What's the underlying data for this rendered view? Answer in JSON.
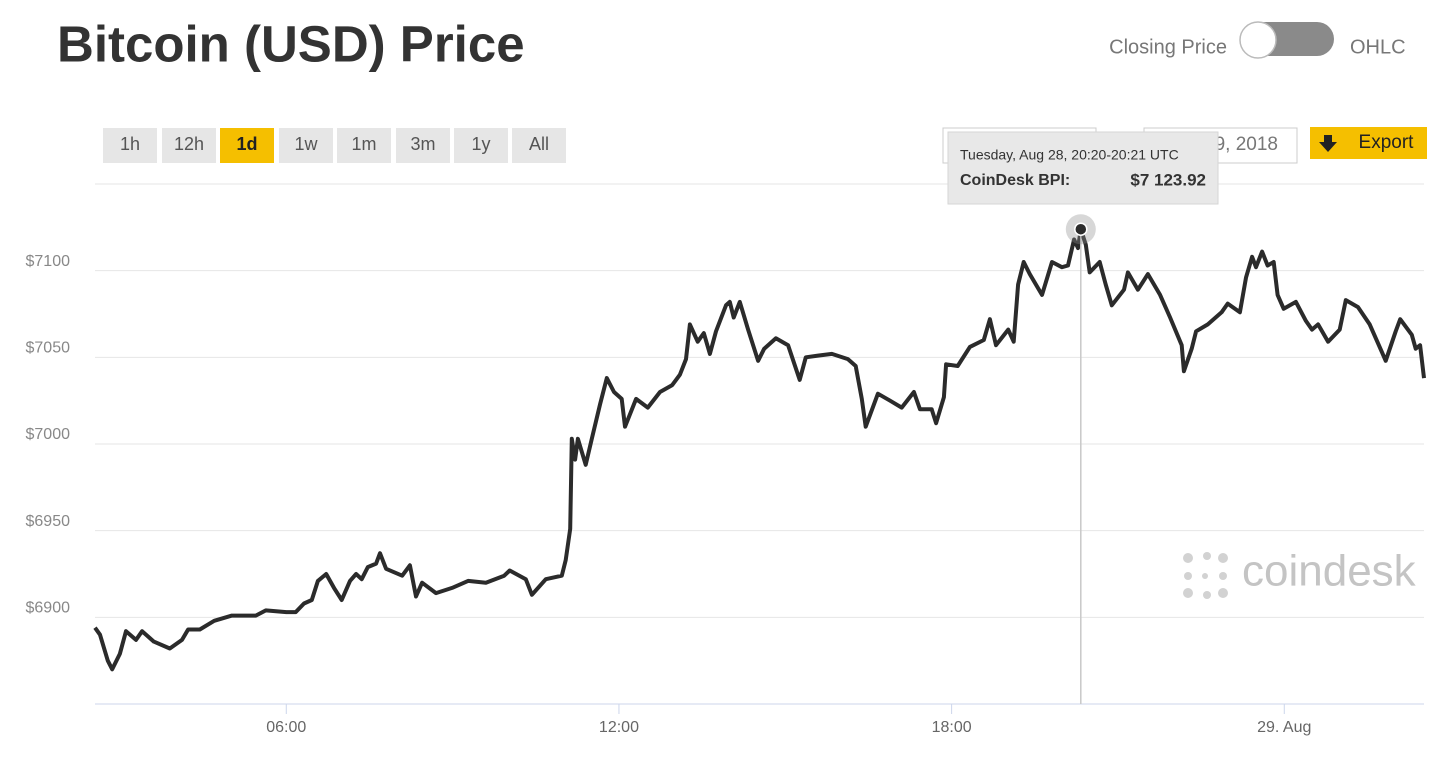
{
  "header": {
    "title": "Bitcoin (USD) Price",
    "toggle": {
      "left": "Closing Price",
      "right": "OHLC"
    }
  },
  "ranges": [
    "1h",
    "12h",
    "1d",
    "1w",
    "1m",
    "3m",
    "1y",
    "All"
  ],
  "selected": 2,
  "date_to": "9, 2018",
  "export": "Export",
  "chart_data": {
    "type": "line",
    "watermark": "coindesk",
    "x": [
      2.55,
      2.64,
      2.78,
      2.86,
      3.0,
      3.11,
      3.29,
      3.4,
      3.61,
      3.9,
      4.12,
      4.23,
      4.44,
      4.7,
      5.02,
      5.45,
      5.63,
      6.0,
      6.17,
      6.32,
      6.46,
      6.57,
      6.72,
      6.86,
      7.0,
      7.15,
      7.26,
      7.36,
      7.47,
      7.62,
      7.69,
      7.8,
      8.09,
      8.23,
      8.34,
      8.45,
      8.7,
      8.99,
      9.28,
      9.6,
      9.93,
      10.03,
      10.32,
      10.43,
      10.68,
      10.97,
      11.04,
      11.12,
      11.15,
      11.21,
      11.26,
      11.4,
      11.51,
      11.66,
      11.78,
      11.91,
      12.05,
      12.11,
      12.31,
      12.52,
      12.74,
      12.96,
      13.1,
      13.21,
      13.28,
      13.42,
      13.53,
      13.64,
      13.75,
      13.93,
      14.0,
      14.07,
      14.18,
      14.33,
      14.51,
      14.62,
      14.83,
      15.05,
      15.26,
      15.37,
      15.59,
      15.84,
      16.13,
      16.27,
      16.38,
      16.45,
      16.67,
      16.89,
      17.1,
      17.32,
      17.43,
      17.64,
      17.72,
      17.86,
      17.9,
      18.11,
      18.33,
      18.58,
      18.69,
      18.8,
      19.02,
      19.12,
      19.2,
      19.3,
      19.41,
      19.63,
      19.81,
      19.99,
      20.1,
      20.21,
      20.28,
      20.33,
      20.42,
      20.49,
      20.67,
      20.78,
      20.89,
      21.11,
      21.18,
      21.36,
      21.54,
      21.76,
      21.94,
      22.15,
      22.19,
      22.33,
      22.41,
      22.62,
      22.87,
      22.98,
      23.2,
      23.31,
      23.42,
      23.49,
      23.6,
      23.7,
      23.81,
      23.88,
      23.99,
      24.21,
      24.39,
      24.5,
      24.61,
      24.79,
      25.0,
      25.11,
      25.33,
      25.54,
      25.76,
      25.83,
      26.01,
      26.09,
      26.3,
      26.37,
      26.45,
      26.52
    ],
    "series": [
      {
        "color": "#2b2b2b",
        "values": [
          6894,
          6890,
          6875,
          6870,
          6879,
          6892,
          6887,
          6892,
          6886,
          6882,
          6887,
          6893,
          6893,
          6898,
          6901,
          6901,
          6904,
          6903,
          6903,
          6908,
          6910,
          6921,
          6925,
          6917,
          6910,
          6921,
          6925,
          6922,
          6929,
          6931,
          6937,
          6928,
          6924,
          6930,
          6912,
          6920,
          6914,
          6917,
          6921,
          6920,
          6924,
          6927,
          6922,
          6913,
          6922,
          6924,
          6933,
          6951,
          7003,
          6991,
          7003,
          6988,
          7003,
          7023,
          7038,
          7030,
          7026,
          7010,
          7026,
          7021,
          7030,
          7034,
          7040,
          7049,
          7069,
          7059,
          7064,
          7052,
          7065,
          7080,
          7082,
          7073,
          7082,
          7066,
          7048,
          7055,
          7061,
          7057,
          7037,
          7050,
          7051,
          7052,
          7049,
          7045,
          7026,
          7010,
          7029,
          7025,
          7021,
          7030,
          7020,
          7020,
          7012,
          7027,
          7046,
          7045,
          7056,
          7060,
          7072,
          7057,
          7066,
          7059,
          7092,
          7105,
          7098,
          7086,
          7105,
          7102,
          7103,
          7118,
          7113,
          7123.92,
          7115,
          7099,
          7105,
          7092,
          7080,
          7089,
          7099,
          7089,
          7098,
          7086,
          7073,
          7057,
          7042,
          7055,
          7065,
          7069,
          7076,
          7081,
          7076,
          7096,
          7108,
          7102,
          7111,
          7103,
          7105,
          7086,
          7078,
          7082,
          7071,
          7066,
          7069,
          7059,
          7066,
          7083,
          7079,
          7069,
          7053,
          7048,
          7065,
          7072,
          7063,
          7055,
          7057,
          7038
        ]
      }
    ],
    "xlim": [
      2.55,
      26.52
    ],
    "ylim": [
      6850,
      7150
    ],
    "xticks": [
      {
        "value": 6,
        "label": "06:00"
      },
      {
        "value": 12,
        "label": "12:00"
      },
      {
        "value": 18,
        "label": "18:00"
      },
      {
        "value": 24,
        "label": "29. Aug"
      }
    ],
    "yticks": [
      {
        "value": 6900,
        "label": "$6900"
      },
      {
        "value": 6950,
        "label": "$6950"
      },
      {
        "value": 7000,
        "label": "$7000"
      },
      {
        "value": 7050,
        "label": "$7050"
      },
      {
        "value": 7100,
        "label": "$7100"
      }
    ],
    "grid": true,
    "tooltip": {
      "title": "Tuesday, Aug 28, 20:20-20:21 UTC",
      "name": "CoinDesk BPI:",
      "x": 20.33,
      "value": 7123.92,
      "value_label": "$7 123.92"
    }
  }
}
